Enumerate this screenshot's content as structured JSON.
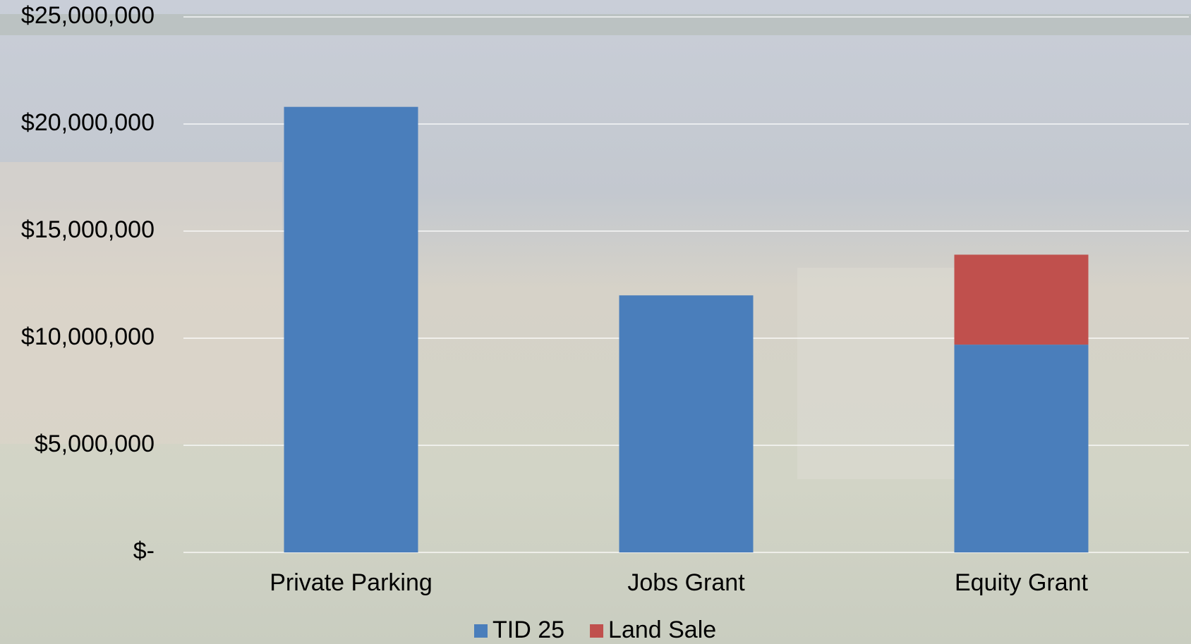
{
  "chart_data": {
    "type": "stacked_bar",
    "categories": [
      "Private Parking",
      "Jobs Grant",
      "Equity Grant"
    ],
    "series": [
      {
        "name": "TID 25",
        "color": "#4a7ebb",
        "values": [
          20800000,
          12000000,
          9700000
        ]
      },
      {
        "name": "Land Sale",
        "color": "#c0504d",
        "values": [
          0,
          0,
          4200000
        ]
      }
    ],
    "ylim": [
      0,
      25000000
    ],
    "yticks": [
      {
        "value": 0,
        "label": "$-"
      },
      {
        "value": 5000000,
        "label": "$5,000,000"
      },
      {
        "value": 10000000,
        "label": "$10,000,000"
      },
      {
        "value": 15000000,
        "label": "$15,000,000"
      },
      {
        "value": 20000000,
        "label": "$20,000,000"
      },
      {
        "value": 25000000,
        "label": "$25,000,000"
      }
    ],
    "grid": true,
    "legend": "bottom"
  }
}
